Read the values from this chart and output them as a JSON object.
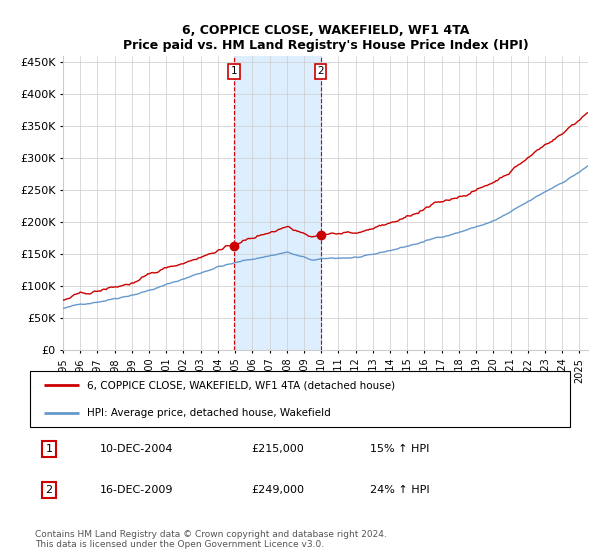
{
  "title": "6, COPPICE CLOSE, WAKEFIELD, WF1 4TA",
  "subtitle": "Price paid vs. HM Land Registry's House Price Index (HPI)",
  "legend_line1": "6, COPPICE CLOSE, WAKEFIELD, WF1 4TA (detached house)",
  "legend_line2": "HPI: Average price, detached house, Wakefield",
  "sale1_date": "10-DEC-2004",
  "sale1_price": 215000,
  "sale1_hpi": "15% ↑ HPI",
  "sale2_date": "16-DEC-2009",
  "sale2_price": 249000,
  "sale2_hpi": "24% ↑ HPI",
  "footer": "Contains HM Land Registry data © Crown copyright and database right 2024.\nThis data is licensed under the Open Government Licence v3.0.",
  "red_color": "#cc0000",
  "blue_color": "#6699cc",
  "shade_color": "#ddeeff",
  "grid_color": "#cccccc",
  "ylim": [
    0,
    460000
  ],
  "yticks": [
    0,
    50000,
    100000,
    150000,
    200000,
    250000,
    300000,
    350000,
    400000,
    450000
  ],
  "year_start": 1995,
  "year_end": 2025,
  "sale1_year": 2004.92,
  "sale2_year": 2009.96
}
